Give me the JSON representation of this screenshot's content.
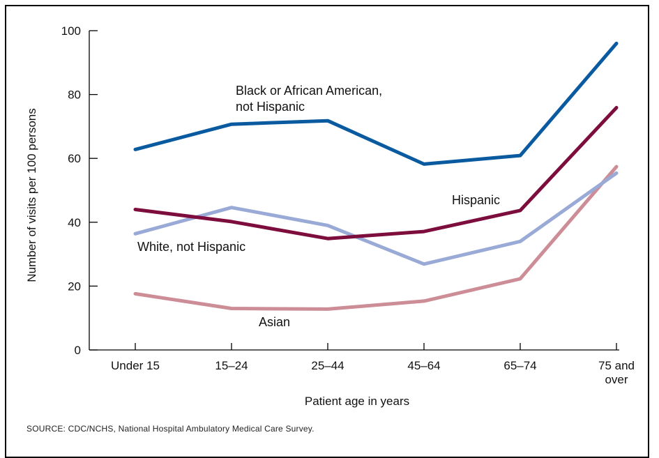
{
  "chart_data": {
    "type": "line",
    "categories": [
      "Under 15",
      "15–24",
      "25–44",
      "45–64",
      "65–74",
      "75 and over"
    ],
    "category_lines": [
      [
        "Under 15"
      ],
      [
        "15–24"
      ],
      [
        "25–44"
      ],
      [
        "45–64"
      ],
      [
        "65–74"
      ],
      [
        "75 and",
        "over"
      ]
    ],
    "xlabel": "Patient age in years",
    "ylabel": "Number of visits per 100 persons",
    "ylim": [
      0,
      100
    ],
    "yticks": [
      0,
      20,
      40,
      60,
      80,
      100
    ],
    "grid": false,
    "legend": "inline-labels",
    "series": [
      {
        "name": "Black or African American, not Hispanic",
        "label_lines": [
          "Black or African American,",
          "not Hispanic"
        ],
        "color": "#0a5aa0",
        "values": [
          62.8,
          70.7,
          71.8,
          58.2,
          60.9,
          96.0
        ]
      },
      {
        "name": "Hispanic",
        "label_lines": [
          "Hispanic"
        ],
        "color": "#7d0d3c",
        "values": [
          44.0,
          40.2,
          34.9,
          37.1,
          43.7,
          75.9
        ]
      },
      {
        "name": "White, not Hispanic",
        "label_lines": [
          "White, not Hispanic"
        ],
        "color": "#9aaad6",
        "values": [
          36.4,
          44.6,
          39.0,
          26.9,
          34.0,
          55.4
        ]
      },
      {
        "name": "Asian",
        "label_lines": [
          "Asian"
        ],
        "color": "#cc8d97",
        "values": [
          17.6,
          13.0,
          12.8,
          15.3,
          22.3,
          57.4
        ]
      }
    ]
  },
  "source_note": "SOURCE:  CDC/NCHS, National Hospital Ambulatory Medical Care Survey."
}
